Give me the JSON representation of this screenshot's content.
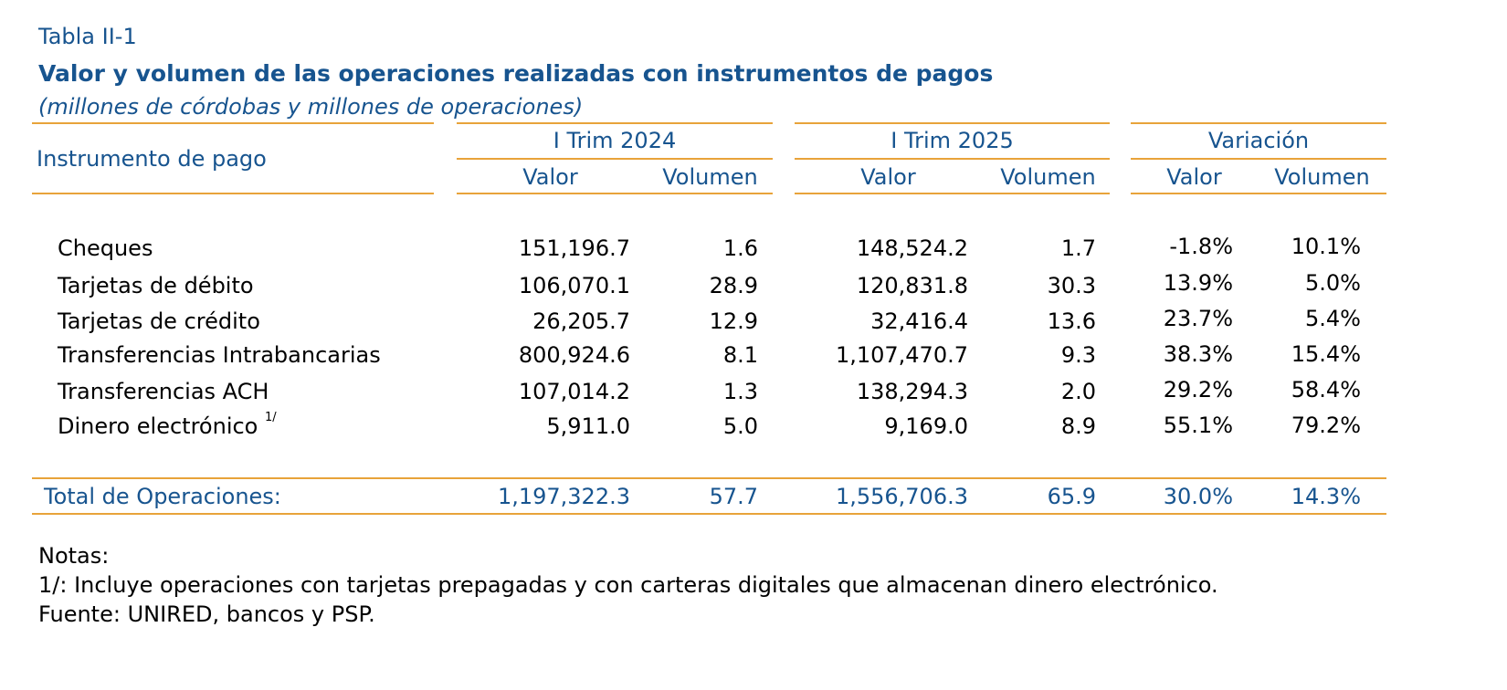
{
  "table_label": "Tabla II-1",
  "title": "Valor y volumen de las operaciones realizadas con instrumentos de pagos",
  "subtitle": "(millones de córdobas y millones de operaciones)",
  "header": {
    "instrument": "Instrumento de pago",
    "groups": [
      "I Trim 2024",
      "I Trim 2025",
      "Variación"
    ],
    "valor": "Valor",
    "volumen": "Volumen"
  },
  "rows": [
    {
      "label": "Cheques",
      "note": "",
      "v2024": "151,196.7",
      "vol2024": "1.6",
      "v2025": "148,524.2",
      "vol2025": "1.7",
      "var_valor": "-1.8%",
      "var_volumen": "10.1%"
    },
    {
      "label": "Tarjetas de débito",
      "note": "",
      "v2024": "106,070.1",
      "vol2024": "28.9",
      "v2025": "120,831.8",
      "vol2025": "30.3",
      "var_valor": "13.9%",
      "var_volumen": "5.0%"
    },
    {
      "label": "Tarjetas de crédito",
      "note": "",
      "v2024": "26,205.7",
      "vol2024": "12.9",
      "v2025": "32,416.4",
      "vol2025": "13.6",
      "var_valor": "23.7%",
      "var_volumen": "5.4%"
    },
    {
      "label": "Transferencias Intrabancarias",
      "note": "",
      "v2024": "800,924.6",
      "vol2024": "8.1",
      "v2025": "1,107,470.7",
      "vol2025": "9.3",
      "var_valor": "38.3%",
      "var_volumen": "15.4%"
    },
    {
      "label": "Transferencias ACH",
      "note": "",
      "v2024": "107,014.2",
      "vol2024": "1.3",
      "v2025": "138,294.3",
      "vol2025": "2.0",
      "var_valor": "29.2%",
      "var_volumen": "58.4%"
    },
    {
      "label": "Dinero electrónico",
      "note": "1/",
      "v2024": "5,911.0",
      "vol2024": "5.0",
      "v2025": "9,169.0",
      "vol2025": "8.9",
      "var_valor": "55.1%",
      "var_volumen": "79.2%"
    }
  ],
  "total": {
    "label": "Total de Operaciones:",
    "v2024": "1,197,322.3",
    "vol2024": "57.7",
    "v2025": "1,556,706.3",
    "vol2025": "65.9",
    "var_valor": "30.0%",
    "var_volumen": "14.3%"
  },
  "notes": {
    "heading": "Notas:",
    "note1": "1/: Incluye operaciones con tarjetas prepagadas y con carteras digitales que almacenan dinero electrónico.",
    "source": "Fuente: UNIRED, bancos y PSP."
  },
  "colors": {
    "title_blue": "#17548f",
    "rule_orange": "#e8a33a"
  }
}
